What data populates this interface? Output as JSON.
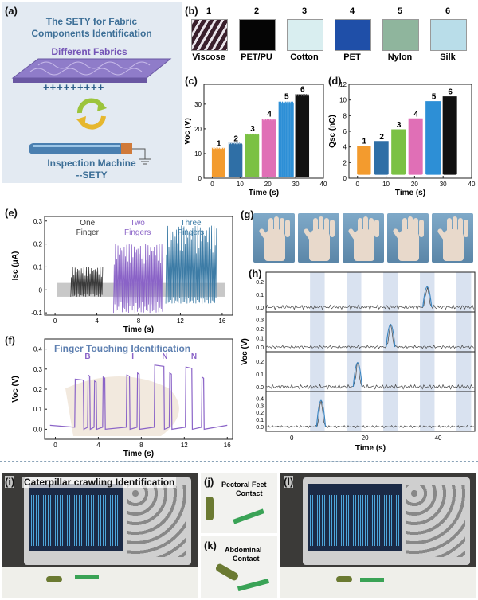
{
  "panels": {
    "a": "(a)",
    "b": "(b)",
    "c": "(c)",
    "d": "(d)",
    "e": "(e)",
    "f": "(f)",
    "g": "(g)",
    "h": "(h)",
    "i": "(i)",
    "j": "(j)",
    "k": "(k)",
    "l": "(l)"
  },
  "panel_a": {
    "title_line1": "The SETY for Fabric",
    "title_line2": "Components Identification",
    "fabrics_label": "Different Fabrics",
    "charges": "+++++++++",
    "machine_line1": "Inspection Machine",
    "machine_line2": "--SETY"
  },
  "panel_b": {
    "swatches": [
      {
        "num": "1",
        "label": "Viscose",
        "color": "#3a1f2c"
      },
      {
        "num": "2",
        "label": "PET/PU",
        "color": "#050505"
      },
      {
        "num": "3",
        "label": "Cotton",
        "color": "#d9eef0"
      },
      {
        "num": "4",
        "label": "PET",
        "color": "#1f4fa8"
      },
      {
        "num": "5",
        "label": "Nylon",
        "color": "#8fb59d"
      },
      {
        "num": "6",
        "label": "Silk",
        "color": "#b9dde9"
      }
    ]
  },
  "panel_e_text": {
    "one_finger_1": "One",
    "one_finger_2": "Finger",
    "two_fingers_1": "Two",
    "two_fingers_2": "Fingers",
    "three_fingers_1": "Three",
    "three_fingers_2": "Fingers"
  },
  "panel_f_text": {
    "overlay_title": "Finger Touching Identification",
    "letters": [
      "B",
      "I",
      "N",
      "N"
    ]
  },
  "panel_i": {
    "caption": "Caterpillar crawling Identification"
  },
  "panel_j": {
    "caption_line1": "Pectoral Feet",
    "caption_line2": "Contact"
  },
  "panel_k": {
    "caption_line1": "Abdominal",
    "caption_line2": "Contact"
  },
  "colors": {
    "c_series": [
      "#f39b2e",
      "#2f6fa6",
      "#7bc144",
      "#e06fb6",
      "#2d8fd6",
      "#111111"
    ],
    "purple": "#8a63c7",
    "steel": "#3d7ca6",
    "dark": "#3a3a3a",
    "band": "#c9d6ea"
  },
  "chart_data": [
    {
      "id": "c",
      "type": "line",
      "title": "",
      "xlabel": "Time (s)",
      "ylabel": "Voc (V)",
      "xlim": [
        -3,
        40
      ],
      "ylim": [
        0,
        38
      ],
      "xticks": [
        "0",
        "10",
        "20",
        "30",
        "40"
      ],
      "yticks": [
        "0",
        "10",
        "20",
        "30"
      ],
      "series": [
        {
          "name": "1",
          "x_start": 0,
          "x_end": 4.8,
          "peak": 12
        },
        {
          "name": "2",
          "x_start": 6,
          "x_end": 11,
          "peak": 14
        },
        {
          "name": "3",
          "x_start": 12,
          "x_end": 17,
          "peak": 18
        },
        {
          "name": "4",
          "x_start": 18,
          "x_end": 23,
          "peak": 24
        },
        {
          "name": "5",
          "x_start": 24,
          "x_end": 29.5,
          "peak": 31
        },
        {
          "name": "6",
          "x_start": 30,
          "x_end": 35,
          "peak": 34
        }
      ]
    },
    {
      "id": "d",
      "type": "line",
      "title": "",
      "xlabel": "Time (s)",
      "ylabel": "Qsc (nC)",
      "xlim": [
        -3,
        40
      ],
      "ylim": [
        0,
        12
      ],
      "xticks": [
        "0",
        "10",
        "20",
        "30",
        "40"
      ],
      "yticks": [
        "0",
        "2",
        "4",
        "6",
        "8",
        "10",
        "12"
      ],
      "series": [
        {
          "name": "1",
          "x_start": 0,
          "x_end": 4.8,
          "low": 0.5,
          "high": 4.1
        },
        {
          "name": "2",
          "x_start": 6,
          "x_end": 11,
          "low": 0.5,
          "high": 4.7
        },
        {
          "name": "3",
          "x_start": 12,
          "x_end": 17,
          "low": 0.5,
          "high": 6.2
        },
        {
          "name": "4",
          "x_start": 18,
          "x_end": 23,
          "low": 0.5,
          "high": 7.6
        },
        {
          "name": "5",
          "x_start": 24,
          "x_end": 29.5,
          "low": 0.5,
          "high": 9.8
        },
        {
          "name": "6",
          "x_start": 30,
          "x_end": 35,
          "low": 0.5,
          "high": 10.4
        }
      ]
    },
    {
      "id": "e",
      "type": "line",
      "title": "",
      "xlabel": "Time (s)",
      "ylabel": "Isc (μA)",
      "xlim": [
        -1,
        17
      ],
      "ylim": [
        -0.11,
        0.32
      ],
      "xticks": [
        "0",
        "4",
        "8",
        "12",
        "16"
      ],
      "yticks": [
        "-0.1",
        "0",
        "0.1",
        "0.2",
        "0.3"
      ],
      "series": [
        {
          "name": "One Finger",
          "x_start": 1.5,
          "x_end": 4.6,
          "max": 0.1,
          "min": -0.03
        },
        {
          "name": "Two Fingers",
          "x_start": 5.6,
          "x_end": 10.3,
          "max": 0.2,
          "min": -0.1
        },
        {
          "name": "Three Fingers",
          "x_start": 10.6,
          "x_end": 15.5,
          "max": 0.28,
          "min": -0.06
        }
      ]
    },
    {
      "id": "f",
      "type": "line",
      "title": "",
      "xlabel": "Time (s)",
      "ylabel": "Voc (V)",
      "xlim": [
        -1,
        16.5
      ],
      "ylim": [
        -0.05,
        0.45
      ],
      "xticks": [
        "0",
        "4",
        "8",
        "12",
        "16"
      ],
      "yticks": [
        "0.0",
        "0.1",
        "0.2",
        "0.3",
        "0.4"
      ],
      "series": [
        {
          "name": "B",
          "pulses": [
            [
              1.8,
              2.6,
              0.25
            ],
            [
              3.0,
              3.2,
              0.27
            ],
            [
              3.6,
              3.8,
              0.24
            ],
            [
              4.4,
              4.6,
              0.26
            ]
          ]
        },
        {
          "name": "I",
          "pulses": [
            [
              6.6,
              6.9,
              0.27
            ],
            [
              7.6,
              7.8,
              0.28
            ]
          ]
        },
        {
          "name": "N",
          "pulses": [
            [
              9.2,
              10.1,
              0.32
            ],
            [
              10.6,
              10.8,
              0.28
            ]
          ]
        },
        {
          "name": "N",
          "pulses": [
            [
              12.1,
              12.7,
              0.31
            ],
            [
              13.6,
              13.8,
              0.26
            ]
          ]
        }
      ]
    },
    {
      "id": "h",
      "type": "line",
      "title": "",
      "xlabel": "Time (s)",
      "ylabel": "Voc (V)",
      "xlim": [
        -7,
        50
      ],
      "ylim": [
        -0.05,
        0.45
      ],
      "xticks": [
        "0",
        "20",
        "40"
      ],
      "bands": [
        [
          5,
          9
        ],
        [
          15,
          19
        ],
        [
          25,
          29
        ],
        [
          35,
          39
        ],
        [
          45,
          49
        ]
      ],
      "series": [
        {
          "name": "row 1",
          "yticks": [
            "0.0",
            "0.1",
            "0.2"
          ],
          "peak_x": 37,
          "peak": 0.16
        },
        {
          "name": "row 2",
          "yticks": [
            "0.0",
            "0.1",
            "0.2",
            "0.3"
          ],
          "peak_x": 27,
          "peak": 0.25
        },
        {
          "name": "row 3",
          "yticks": [
            "0.0",
            "0.1",
            "0.2"
          ],
          "peak_x": 18,
          "peak": 0.19
        },
        {
          "name": "row 4",
          "yticks": [
            "0.0",
            "0.1",
            "0.2",
            "0.3",
            "0.4"
          ],
          "peak_x": 8,
          "peak": 0.37
        }
      ]
    }
  ]
}
